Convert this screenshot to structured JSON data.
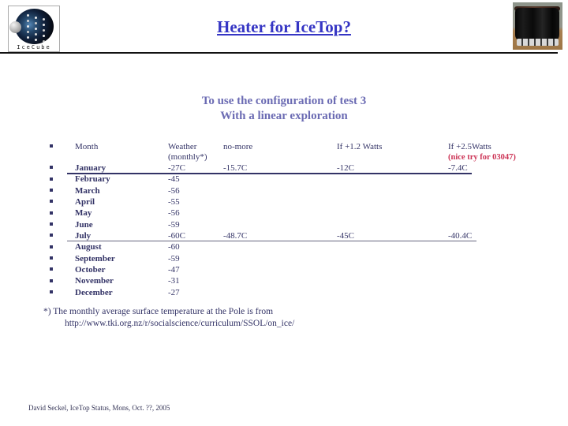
{
  "colors": {
    "title_blue": "#3535c4",
    "subtitle_purple": "#6b6bb3",
    "body_navy": "#333366",
    "accent_red": "#cc3355"
  },
  "header": {
    "title": "Heater for IceTop?",
    "logo_caption": "IceCube"
  },
  "subtitle": {
    "line1": "To use the configuration of test 3",
    "line2": "With a linear exploration"
  },
  "table": {
    "headers": {
      "month": "Month",
      "weather_line1": "Weather",
      "weather_line2": "(monthly*)",
      "no_more": "no-more",
      "if_1_2": "If +1.2 Watts",
      "if_2_5_line1": "If +2.5Watts",
      "if_2_5_line2": "(nice try for 03047)"
    },
    "rows": [
      {
        "month": "January",
        "weather": "-27C",
        "no_more": "-15.7C",
        "if_1_2": "-12C",
        "if_2_5": "-7.4C",
        "underlined": true
      },
      {
        "month": "February",
        "weather": "-45"
      },
      {
        "month": "March",
        "weather": "-56"
      },
      {
        "month": "April",
        "weather": "-55"
      },
      {
        "month": "May",
        "weather": "-56"
      },
      {
        "month": "June",
        "weather": "-59"
      },
      {
        "month": "July",
        "weather": "-60C",
        "no_more": "-48.7C",
        "if_1_2": "-45C",
        "if_2_5": "-40.4C",
        "underlined": true
      },
      {
        "month": "August",
        "weather": "-60"
      },
      {
        "month": "September",
        "weather": "-59"
      },
      {
        "month": "October",
        "weather": "-47"
      },
      {
        "month": "November",
        "weather": "-31"
      },
      {
        "month": "December",
        "weather": "-27"
      }
    ]
  },
  "footnote": {
    "marker": "*)",
    "line1": "The monthly average surface temperature at the Pole is from",
    "line2": "http://www.tki.org.nz/r/socialscience/curriculum/SSOL/on_ice/"
  },
  "footer": {
    "credit": "David Seckel, IceTop Status, Mons,  Oct. ??, 2005"
  }
}
